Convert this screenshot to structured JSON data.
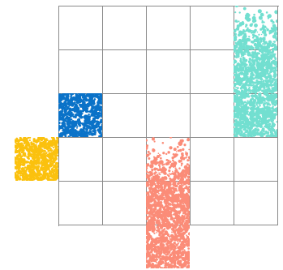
{
  "board": {
    "columns": 5,
    "rows": 5
  },
  "pieces": [
    {
      "name": "piece-blue",
      "color": "#0a72c8",
      "col": 0,
      "row": 2,
      "spanCols": 1,
      "spanRows": 1,
      "fade": "none"
    },
    {
      "name": "piece-yellow",
      "color": "#fbc10e",
      "col": -1,
      "row": 3,
      "spanCols": 1,
      "spanRows": 1,
      "fade": "none"
    },
    {
      "name": "piece-teal",
      "color": "#72dfd0",
      "col": 4,
      "row": 0,
      "spanCols": 1,
      "spanRows": 3,
      "fade": "top"
    },
    {
      "name": "piece-salmon",
      "color": "#fb8c78",
      "col": 2,
      "row": 3,
      "spanCols": 1,
      "spanRows": 3,
      "fade": "top"
    }
  ]
}
